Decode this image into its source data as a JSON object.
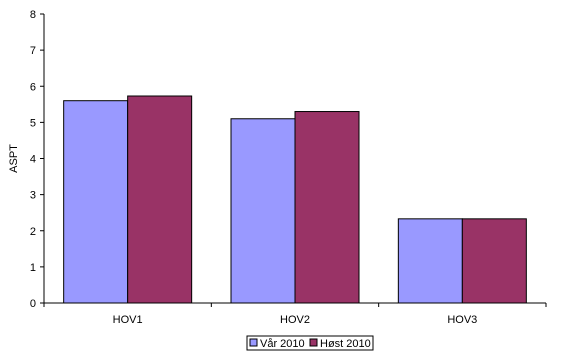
{
  "chart_data": {
    "type": "bar",
    "title": "",
    "xlabel": "",
    "ylabel": "ASPT",
    "ylim": [
      0,
      8
    ],
    "yticks": [
      0,
      1,
      2,
      3,
      4,
      5,
      6,
      7,
      8
    ],
    "grid": false,
    "legend_position": "bottom",
    "categories": [
      "HOV1",
      "HOV2",
      "HOV3"
    ],
    "series": [
      {
        "name": "Vår 2010",
        "values": [
          5.6,
          5.1,
          2.33
        ],
        "color": "#9999ff"
      },
      {
        "name": "Høst 2010",
        "values": [
          5.73,
          5.3,
          2.33
        ],
        "color": "#993366"
      }
    ]
  }
}
